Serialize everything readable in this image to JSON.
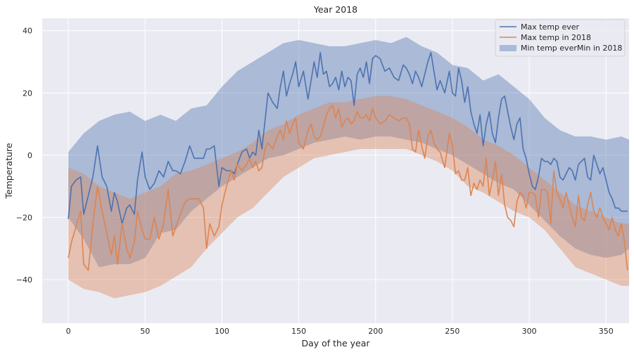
{
  "chart_data": {
    "type": "line",
    "title": "Year 2018",
    "xlabel": "Day of the year",
    "ylabel": "Temperature",
    "xlim": [
      -17,
      365
    ],
    "ylim": [
      -54,
      44
    ],
    "xticks": [
      0,
      50,
      100,
      150,
      200,
      250,
      300,
      350
    ],
    "yticks": [
      -40,
      -20,
      0,
      20,
      40
    ],
    "grid": true,
    "legend_position": "top-right",
    "legend": [
      "Max temp ever",
      "Max temp in 2018",
      "Min temp everMin in 2018"
    ],
    "colors": {
      "max_ever": "#4c72b0",
      "max_2018": "#dd8452",
      "band_ever": "#4c72b0",
      "band_2018": "#dd8452",
      "plot_bg": "#eaeaf2",
      "grid": "#ffffff"
    },
    "series": [
      {
        "name": "Max temp ever",
        "kind": "line",
        "x": [
          0,
          2,
          5,
          8,
          10,
          13,
          16,
          19,
          22,
          25,
          28,
          30,
          32,
          35,
          38,
          40,
          43,
          45,
          48,
          50,
          53,
          56,
          59,
          62,
          65,
          68,
          70,
          73,
          76,
          79,
          82,
          85,
          88,
          90,
          92,
          95,
          98,
          100,
          103,
          106,
          108,
          110,
          113,
          116,
          118,
          120,
          122,
          124,
          126,
          128,
          130,
          133,
          136,
          138,
          140,
          142,
          144,
          146,
          148,
          150,
          153,
          156,
          158,
          160,
          162,
          164,
          166,
          168,
          170,
          172,
          174,
          176,
          178,
          180,
          182,
          184,
          186,
          188,
          190,
          192,
          194,
          196,
          198,
          200,
          203,
          206,
          209,
          212,
          215,
          218,
          220,
          222,
          224,
          226,
          228,
          230,
          232,
          234,
          236,
          238,
          240,
          242,
          245,
          248,
          250,
          252,
          254,
          256,
          258,
          260,
          262,
          264,
          266,
          268,
          270,
          272,
          274,
          276,
          278,
          280,
          282,
          284,
          286,
          288,
          290,
          292,
          294,
          296,
          298,
          300,
          302,
          304,
          306,
          308,
          310,
          312,
          314,
          316,
          318,
          320,
          322,
          324,
          326,
          328,
          330,
          332,
          334,
          336,
          338,
          340,
          342,
          344,
          346,
          348,
          350,
          352,
          354,
          356,
          358,
          360,
          362,
          364
        ],
        "y": [
          -20.5,
          -10,
          -8,
          -7,
          -19,
          -13,
          -7,
          3,
          -7,
          -10,
          -18,
          -12,
          -15,
          -22,
          -17,
          -16,
          -19,
          -8,
          1,
          -7,
          -11,
          -9,
          -5,
          -7,
          -2,
          -5,
          -5,
          -6,
          -2,
          3,
          -1,
          -1,
          -1,
          2,
          2,
          3,
          -10,
          -4,
          -5,
          -5,
          -6,
          -3,
          1,
          2,
          -1,
          1,
          0,
          8,
          2,
          11,
          20,
          17,
          15,
          22,
          27,
          19,
          23,
          26,
          30,
          22,
          27,
          18,
          24,
          30,
          25,
          33,
          26,
          27,
          22,
          23,
          25,
          21,
          27,
          22,
          25,
          24,
          16,
          26,
          28,
          25,
          30,
          23,
          31,
          32,
          31,
          27,
          28,
          25,
          24,
          29,
          28,
          26,
          23,
          27,
          25,
          22,
          26,
          30,
          33,
          27,
          21,
          24,
          20,
          27,
          20,
          19,
          28,
          24,
          17,
          22,
          14,
          10,
          7,
          13,
          3,
          10,
          14,
          7,
          4,
          12,
          18,
          19,
          14,
          9,
          5,
          10,
          12,
          2,
          -1,
          -6,
          -10,
          -11,
          -7,
          -1,
          -2,
          -2,
          -3,
          -1,
          -2,
          -7,
          -8,
          -6,
          -4,
          -5,
          -8,
          -3,
          -2,
          -1,
          -7,
          -8,
          0,
          -3,
          -6,
          -4,
          -8,
          -12,
          -14,
          -17,
          -17,
          -18,
          -18,
          -18
        ],
        "color": "#4c72b0"
      },
      {
        "name": "Max temp in 2018",
        "kind": "line",
        "x": [
          0,
          2,
          5,
          8,
          10,
          13,
          16,
          19,
          22,
          25,
          28,
          30,
          32,
          35,
          38,
          40,
          43,
          45,
          48,
          50,
          53,
          56,
          59,
          62,
          65,
          68,
          70,
          73,
          76,
          79,
          82,
          85,
          88,
          90,
          92,
          95,
          98,
          100,
          103,
          106,
          108,
          110,
          113,
          116,
          118,
          120,
          122,
          124,
          126,
          128,
          130,
          133,
          136,
          138,
          140,
          142,
          144,
          146,
          148,
          150,
          153,
          156,
          158,
          160,
          162,
          164,
          166,
          168,
          170,
          172,
          174,
          176,
          178,
          180,
          182,
          184,
          186,
          188,
          190,
          192,
          194,
          196,
          198,
          200,
          203,
          206,
          209,
          212,
          215,
          218,
          220,
          222,
          224,
          226,
          228,
          230,
          232,
          234,
          236,
          238,
          240,
          242,
          245,
          248,
          250,
          252,
          254,
          256,
          258,
          260,
          262,
          264,
          266,
          268,
          270,
          272,
          274,
          276,
          278,
          280,
          282,
          284,
          286,
          288,
          290,
          292,
          294,
          296,
          298,
          300,
          302,
          304,
          306,
          308,
          310,
          312,
          314,
          316,
          318,
          320,
          322,
          324,
          326,
          328,
          330,
          332,
          334,
          336,
          338,
          340,
          342,
          344,
          346,
          348,
          350,
          352,
          354,
          356,
          358,
          360,
          362,
          364
        ],
        "y": [
          -33,
          -28,
          -23,
          -18,
          -35,
          -37,
          -22,
          -10,
          -18,
          -25,
          -32,
          -26,
          -35,
          -22,
          -30,
          -33,
          -28,
          -18,
          -24,
          -27,
          -27,
          -20,
          -27,
          -22,
          -11,
          -26,
          -23,
          -19,
          -15,
          -14,
          -14,
          -14,
          -17,
          -30,
          -22,
          -26,
          -23,
          -16,
          -10,
          -5,
          -8,
          -3,
          -5,
          -3,
          -1,
          -4,
          -2,
          -5,
          -4,
          2,
          4,
          2,
          6,
          8,
          5,
          11,
          7,
          10,
          12,
          4,
          2,
          8,
          10,
          6,
          5,
          6,
          9,
          13,
          15,
          16,
          12,
          15,
          9,
          11,
          12,
          10,
          11,
          14,
          12,
          12,
          13,
          11,
          15,
          12,
          10,
          11,
          13,
          12,
          11,
          12,
          12,
          10,
          2,
          1,
          8,
          3,
          -1,
          6,
          8,
          4,
          2,
          1,
          -4,
          7,
          3,
          -6,
          -5,
          -8,
          -8,
          -4,
          -13,
          -9,
          -11,
          -8,
          -10,
          -1,
          -13,
          -8,
          -2,
          -13,
          -6,
          -16,
          -20,
          -21,
          -23,
          -15,
          -12,
          -13,
          -17,
          -12,
          -12,
          -13,
          -20,
          -11,
          -11,
          -12,
          -22,
          -5,
          -12,
          -14,
          -17,
          -12,
          -16,
          -20,
          -23,
          -13,
          -20,
          -21,
          -16,
          -12,
          -18,
          -20,
          -17,
          -20,
          -22,
          -24,
          -20,
          -24,
          -26,
          -22,
          -28,
          -37
        ],
        "color": "#dd8452"
      },
      {
        "name": "Min temp ever",
        "kind": "band",
        "x": [
          0,
          10,
          20,
          30,
          40,
          50,
          60,
          70,
          80,
          90,
          100,
          110,
          120,
          130,
          140,
          150,
          160,
          170,
          180,
          190,
          200,
          210,
          220,
          230,
          240,
          250,
          260,
          270,
          280,
          290,
          300,
          310,
          320,
          330,
          340,
          350,
          360,
          365
        ],
        "lower": [
          -20,
          -27,
          -36,
          -35,
          -35,
          -33,
          -25,
          -24,
          -18,
          -14,
          -10,
          -7,
          -4,
          -1,
          0,
          2,
          4,
          5,
          6,
          5,
          6,
          6,
          5,
          4,
          2,
          0,
          -3,
          -6,
          -9,
          -11,
          -16,
          -21,
          -26,
          -30,
          -32,
          -33,
          -32,
          -30
        ],
        "upper": [
          1,
          7,
          11,
          13,
          14,
          11,
          13,
          11,
          15,
          16,
          22,
          27,
          30,
          33,
          36,
          37,
          36,
          35,
          35,
          36,
          37,
          36,
          38,
          35,
          33,
          29,
          28,
          24,
          26,
          22,
          18,
          12,
          8,
          6,
          6,
          5,
          6,
          5
        ],
        "color": "#4c72b0"
      },
      {
        "name": "Min in 2018",
        "kind": "band",
        "x": [
          0,
          10,
          20,
          30,
          40,
          50,
          60,
          70,
          80,
          90,
          100,
          110,
          120,
          130,
          140,
          150,
          160,
          170,
          180,
          190,
          200,
          210,
          220,
          230,
          240,
          250,
          260,
          270,
          280,
          290,
          300,
          310,
          320,
          330,
          340,
          350,
          360,
          365
        ],
        "lower": [
          -40,
          -43,
          -44,
          -46,
          -45,
          -44,
          -42,
          -39,
          -36,
          -30,
          -25,
          -20,
          -17,
          -12,
          -7,
          -4,
          -1,
          0,
          1,
          2,
          2,
          2,
          2,
          0,
          -2,
          -5,
          -10,
          -12,
          -15,
          -18,
          -20,
          -24,
          -30,
          -36,
          -38,
          -40,
          -42,
          -42
        ],
        "upper": [
          -4,
          -6,
          -10,
          -12,
          -14,
          -12,
          -10,
          -6,
          -5,
          -3,
          -1,
          1,
          4,
          8,
          10,
          13,
          15,
          17,
          17,
          18,
          19,
          19,
          18,
          16,
          14,
          12,
          9,
          5,
          3,
          0,
          -4,
          -8,
          -12,
          -16,
          -18,
          -20,
          -22,
          -22
        ],
        "color": "#dd8452"
      }
    ]
  }
}
